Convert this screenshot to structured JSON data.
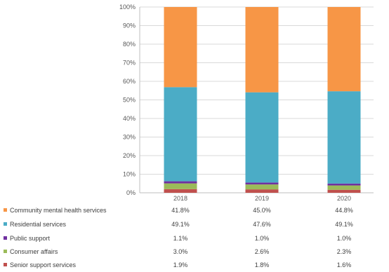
{
  "chart_data": {
    "type": "bar",
    "stacked": true,
    "percent": true,
    "categories": [
      "2018",
      "2019",
      "2020"
    ],
    "ylim": [
      0,
      100
    ],
    "yticks": [
      "0%",
      "10%",
      "20%",
      "30%",
      "40%",
      "50%",
      "60%",
      "70%",
      "80%",
      "90%",
      "100%"
    ],
    "grid": true,
    "legend_placement": "bottom data table",
    "series": [
      {
        "name": "Senior support services",
        "color": "#c0504d",
        "values": [
          1.9,
          1.8,
          1.6
        ],
        "labels": [
          "1.9%",
          "1.8%",
          "1.6%"
        ]
      },
      {
        "name": "Consumer affairs",
        "color": "#9bbb59",
        "values": [
          3.0,
          2.6,
          2.3
        ],
        "labels": [
          "3.0%",
          "2.6%",
          "2.3%"
        ]
      },
      {
        "name": "Public support",
        "color": "#7030a0",
        "values": [
          1.1,
          1.0,
          1.0
        ],
        "labels": [
          "1.1%",
          "1.0%",
          "1.0%"
        ]
      },
      {
        "name": "Residential services",
        "color": "#4bacc6",
        "values": [
          49.1,
          47.6,
          49.1
        ],
        "labels": [
          "49.1%",
          "47.6%",
          "49.1%"
        ]
      },
      {
        "name": "Community mental health services",
        "color": "#f79646",
        "values": [
          41.8,
          45.0,
          44.8
        ],
        "labels": [
          "41.8%",
          "45.0%",
          "44.8%"
        ]
      }
    ],
    "table_order": [
      4,
      3,
      2,
      1,
      0
    ]
  }
}
